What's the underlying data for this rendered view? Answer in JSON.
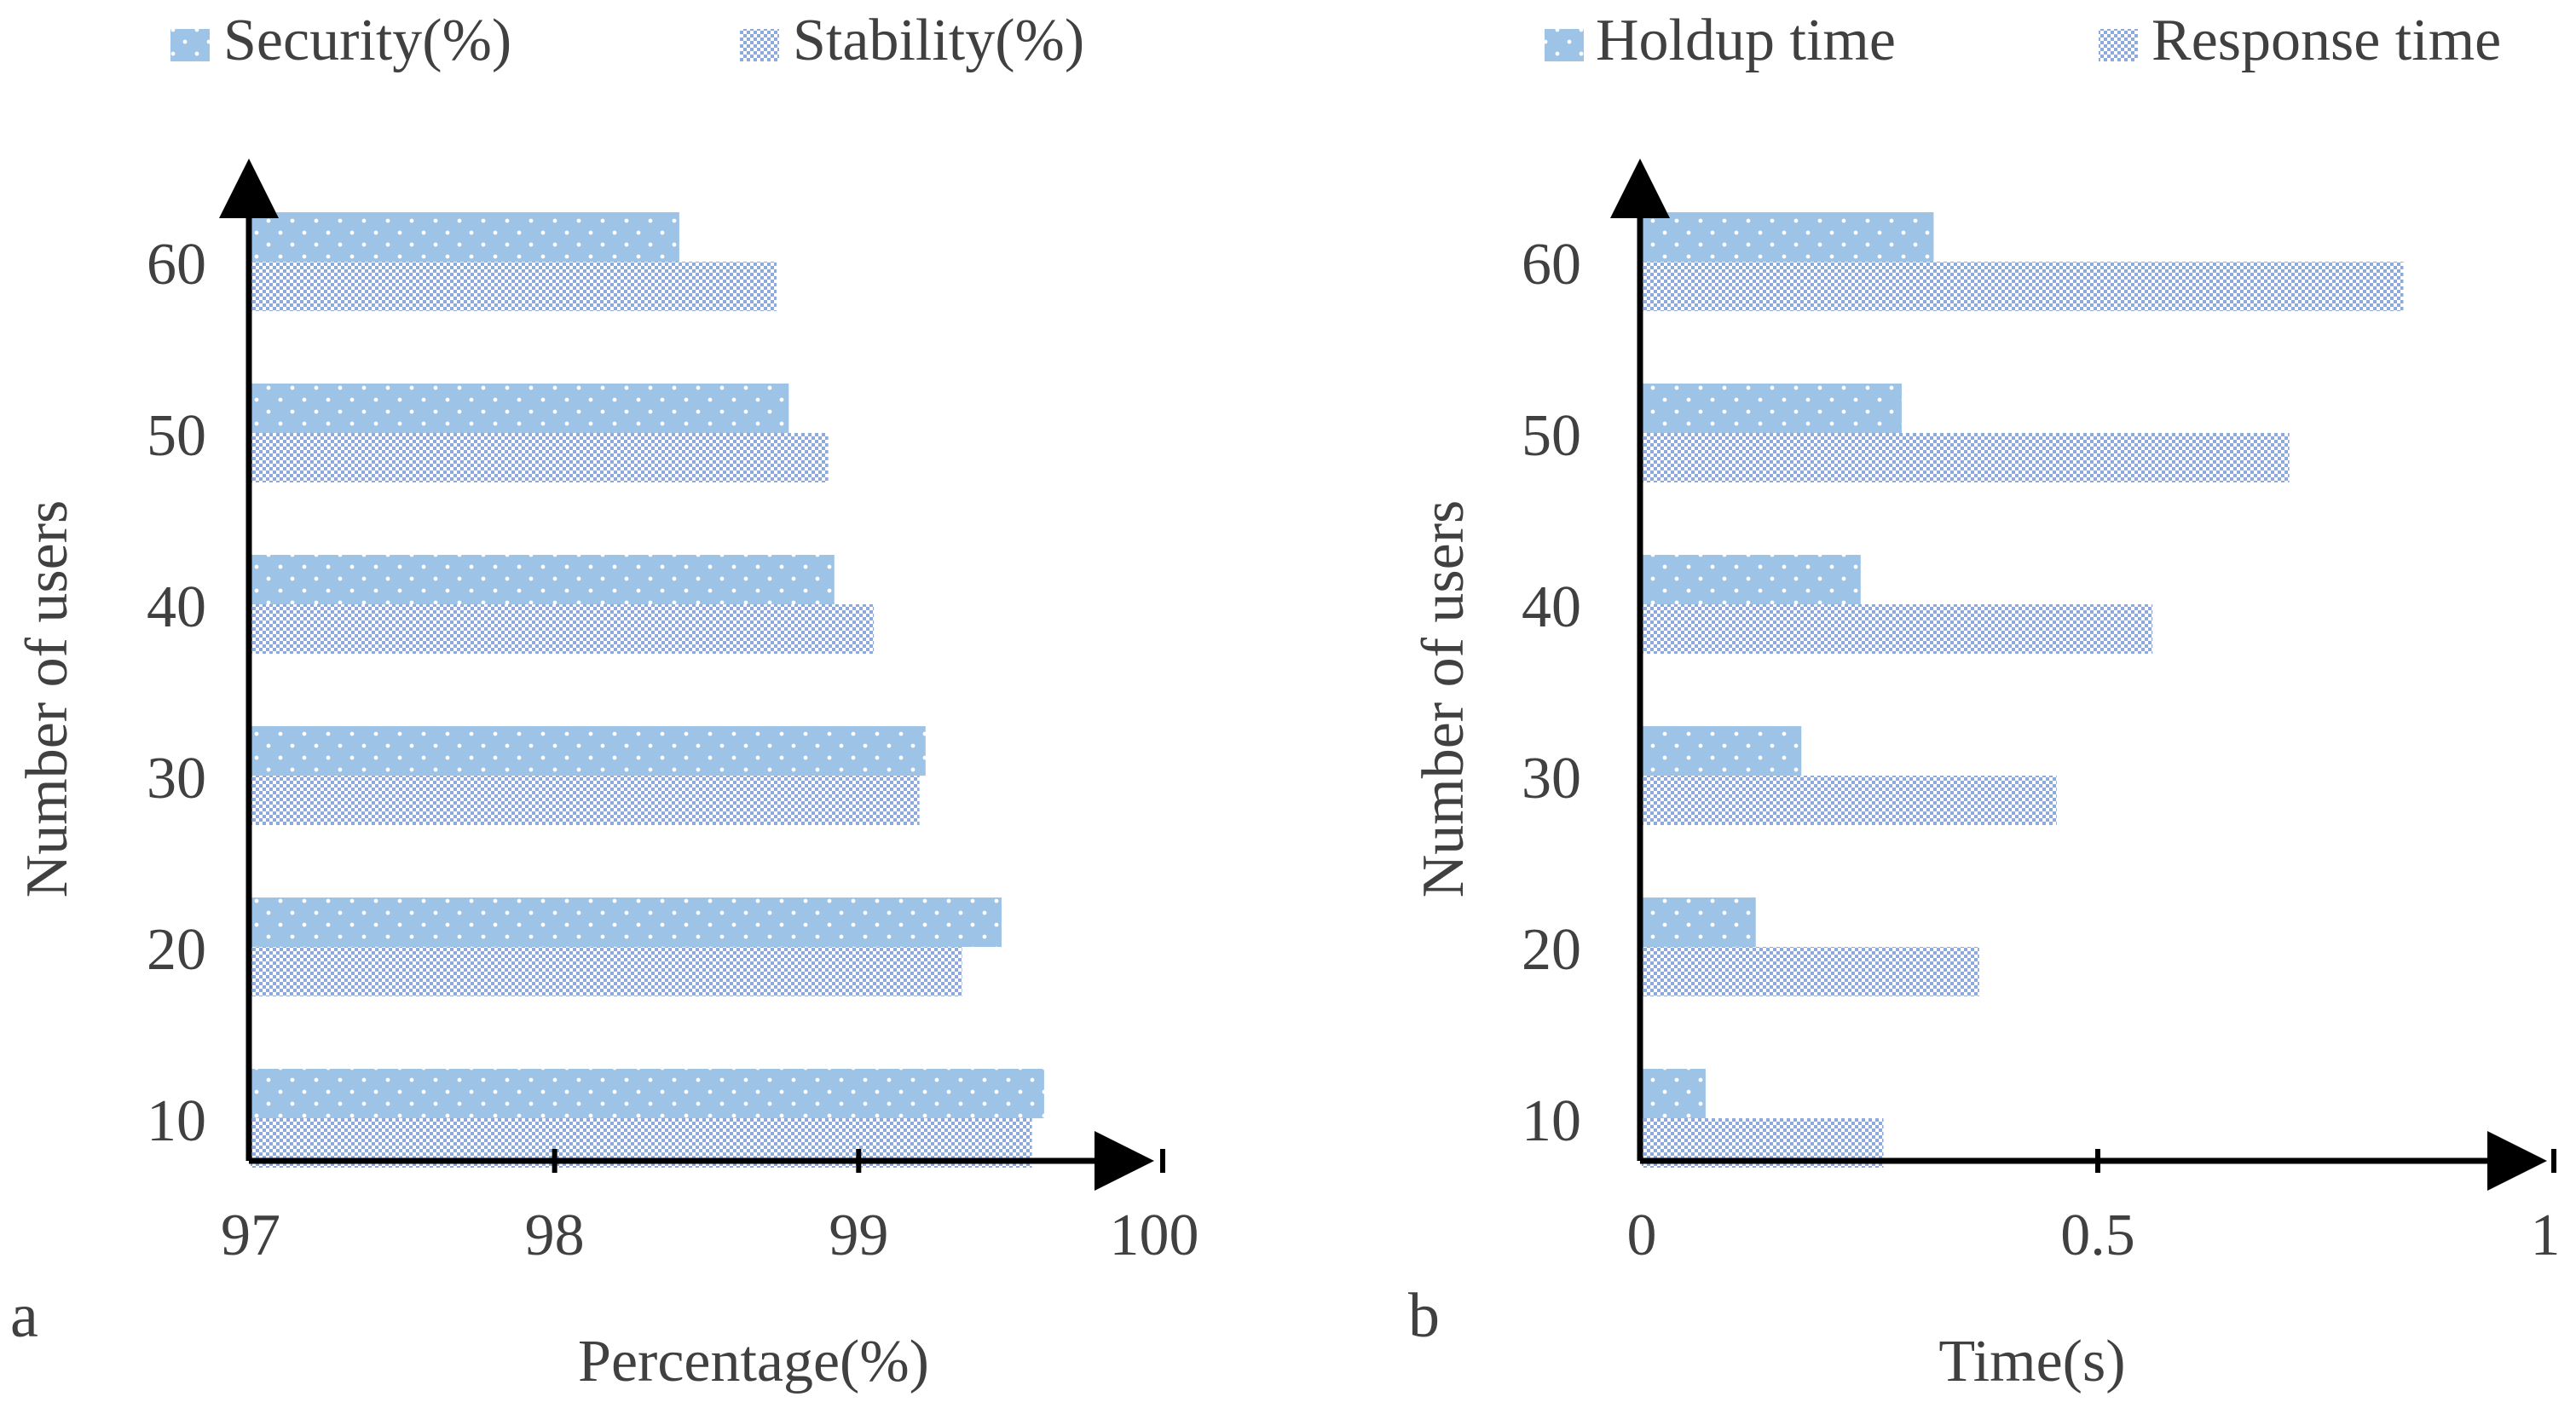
{
  "colors": {
    "holdup": "#9dc3e6",
    "stability_base": "#ffffff",
    "stability_dot": "#8eaadb",
    "axis": "#000000",
    "text": "#404040"
  },
  "chart_data": [
    {
      "type": "bar",
      "orientation": "horizontal",
      "panel_label": "a",
      "title": "",
      "categories": [
        "10",
        "20",
        "30",
        "40",
        "50",
        "60"
      ],
      "series": [
        {
          "name": "Security(%)",
          "pattern": "dotted",
          "values": [
            99.61,
            99.47,
            99.22,
            98.92,
            98.77,
            98.41
          ]
        },
        {
          "name": "Stability(%)",
          "pattern": "checkered",
          "values": [
            99.57,
            99.34,
            99.2,
            99.05,
            98.9,
            98.73
          ]
        }
      ],
      "xlabel": "Percentage(%)",
      "ylabel": "Number of users",
      "xlim": [
        97,
        100
      ],
      "xticks": [
        "97",
        "98",
        "99",
        "100"
      ],
      "xtick_values": [
        97,
        98,
        99,
        100
      ],
      "legend_position": "top",
      "grid": false
    },
    {
      "type": "bar",
      "orientation": "horizontal",
      "panel_label": "b",
      "title": "",
      "categories": [
        "10",
        "20",
        "30",
        "40",
        "50",
        "60"
      ],
      "series": [
        {
          "name": "Holdup time",
          "pattern": "dotted",
          "values": [
            0.07,
            0.125,
            0.175,
            0.24,
            0.285,
            0.32
          ]
        },
        {
          "name": "Response time",
          "pattern": "checkered",
          "values": [
            0.265,
            0.37,
            0.455,
            0.56,
            0.71,
            0.835
          ]
        }
      ],
      "xlabel": "Time(s)",
      "ylabel": "Number of users",
      "xlim": [
        0,
        1
      ],
      "xticks": [
        "0",
        "0.5",
        "1"
      ],
      "xtick_values": [
        0,
        0.5,
        1
      ],
      "legend_position": "top",
      "grid": false
    }
  ]
}
